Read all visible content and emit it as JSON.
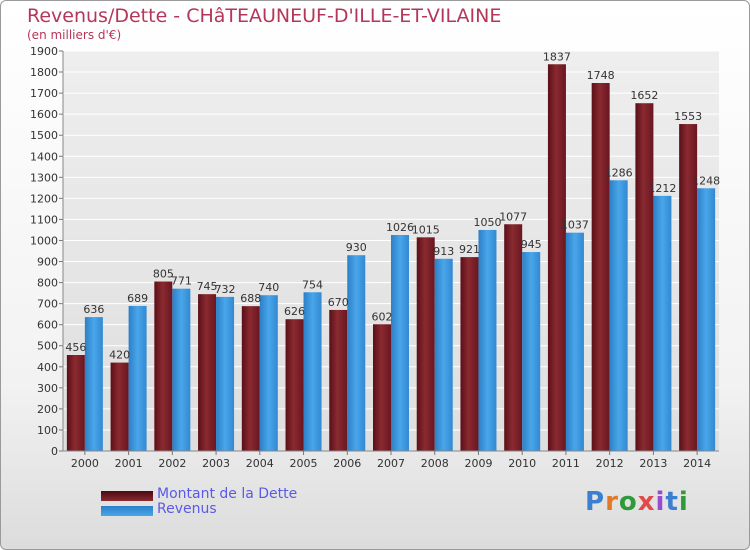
{
  "header": {
    "title": "Revenus/Dette - CHâTEAUNEUF-D'ILLE-ET-VILAINE",
    "subtitle": "(en milliers d'€)"
  },
  "legend": {
    "dette_label": "Montant de la Dette",
    "revenus_label": "Revenus"
  },
  "logo": {
    "letters": [
      "P",
      "r",
      "o",
      "x",
      "i",
      "t",
      "i"
    ],
    "colors": [
      "#3a7fd0",
      "#e07a2a",
      "#2f9a3a",
      "#e24a4a",
      "#9a4ad0",
      "#3a7fd0",
      "#2f9a3a"
    ]
  },
  "colors": {
    "dette": "#7a1e26",
    "revenus": "#3a93d8",
    "axis_text": "#333333"
  },
  "chart_data": {
    "type": "bar",
    "categories": [
      "2000",
      "2001",
      "2002",
      "2003",
      "2004",
      "2005",
      "2006",
      "2007",
      "2008",
      "2009",
      "2010",
      "2011",
      "2012",
      "2013",
      "2014"
    ],
    "series": [
      {
        "name": "Montant de la Dette",
        "values": [
          456,
          420,
          805,
          745,
          688,
          626,
          670,
          602,
          1015,
          921,
          1077,
          1837,
          1748,
          1652,
          1553
        ]
      },
      {
        "name": "Revenus",
        "values": [
          636,
          689,
          771,
          732,
          740,
          754,
          930,
          1026,
          913,
          1050,
          945,
          1037,
          1286,
          1212,
          1248
        ]
      }
    ],
    "ylim": [
      0,
      1900
    ],
    "ystep": 100,
    "grid": true,
    "legend_position": "bottom-left"
  }
}
